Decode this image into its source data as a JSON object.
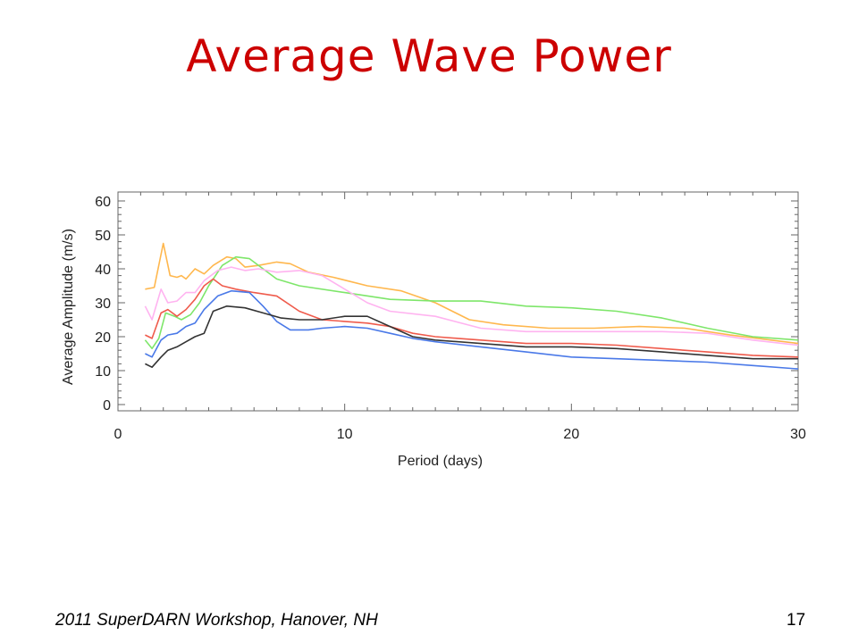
{
  "slide": {
    "title": "Average Wave Power",
    "footer": "2011 SuperDARN Workshop, Hanover, NH",
    "page_number": "17"
  },
  "chart_data": {
    "type": "line",
    "title": "",
    "xlabel": "Period (days)",
    "ylabel": "Average Amplitude (m/s)",
    "xlim": [
      0,
      30
    ],
    "ylim": [
      0,
      60
    ],
    "x_ticks": [
      0,
      10,
      20,
      30
    ],
    "y_ticks": [
      0,
      10,
      20,
      30,
      40,
      50,
      60
    ],
    "grid": false,
    "series": [
      {
        "color": "#ffb74d",
        "points": [
          [
            1.2,
            34
          ],
          [
            1.6,
            34.5
          ],
          [
            2.0,
            47.5
          ],
          [
            2.3,
            38
          ],
          [
            2.6,
            37.5
          ],
          [
            2.8,
            38
          ],
          [
            3.0,
            37
          ],
          [
            3.4,
            40
          ],
          [
            3.8,
            38.5
          ],
          [
            4.2,
            41
          ],
          [
            4.8,
            43.5
          ],
          [
            5.2,
            43
          ],
          [
            5.6,
            40.5
          ],
          [
            6.2,
            41
          ],
          [
            7.0,
            42
          ],
          [
            7.6,
            41.5
          ],
          [
            8.4,
            39
          ],
          [
            9.5,
            37.5
          ],
          [
            11,
            35
          ],
          [
            12.5,
            33.5
          ],
          [
            14,
            30
          ],
          [
            15.5,
            25
          ],
          [
            17,
            23.5
          ],
          [
            19,
            22.5
          ],
          [
            21,
            22.5
          ],
          [
            23,
            23
          ],
          [
            25,
            22.5
          ],
          [
            27,
            20.5
          ],
          [
            30,
            18
          ]
        ]
      },
      {
        "color": "#7ee66a",
        "points": [
          [
            1.2,
            19
          ],
          [
            1.5,
            16.5
          ],
          [
            1.8,
            19.5
          ],
          [
            2.1,
            27
          ],
          [
            2.5,
            26
          ],
          [
            2.8,
            25
          ],
          [
            3.2,
            26.5
          ],
          [
            3.6,
            30
          ],
          [
            4.0,
            35
          ],
          [
            4.6,
            41
          ],
          [
            5.2,
            43.5
          ],
          [
            5.8,
            43
          ],
          [
            6.4,
            40
          ],
          [
            7.0,
            37
          ],
          [
            8.0,
            35
          ],
          [
            10,
            33
          ],
          [
            12,
            31
          ],
          [
            14,
            30.5
          ],
          [
            16,
            30.5
          ],
          [
            18,
            29
          ],
          [
            20,
            28.5
          ],
          [
            22,
            27.5
          ],
          [
            24,
            25.5
          ],
          [
            26,
            22.5
          ],
          [
            28,
            20
          ],
          [
            30,
            19
          ]
        ]
      },
      {
        "color": "#ffb3f0",
        "points": [
          [
            1.2,
            29
          ],
          [
            1.5,
            25
          ],
          [
            1.9,
            34
          ],
          [
            2.2,
            30
          ],
          [
            2.6,
            30.5
          ],
          [
            3.0,
            33
          ],
          [
            3.4,
            33
          ],
          [
            3.8,
            36.5
          ],
          [
            4.4,
            39.5
          ],
          [
            5.0,
            40.5
          ],
          [
            5.6,
            39.5
          ],
          [
            6.2,
            40
          ],
          [
            7.0,
            39
          ],
          [
            8.0,
            39.5
          ],
          [
            9.0,
            38
          ],
          [
            10,
            34
          ],
          [
            11,
            30
          ],
          [
            12,
            27.5
          ],
          [
            14,
            26
          ],
          [
            16,
            22.5
          ],
          [
            18,
            21.5
          ],
          [
            20,
            21.5
          ],
          [
            22,
            21.5
          ],
          [
            24,
            21.5
          ],
          [
            26,
            21
          ],
          [
            28,
            19
          ],
          [
            30,
            17.5
          ]
        ]
      },
      {
        "color": "#ef5b4c",
        "points": [
          [
            1.2,
            20.5
          ],
          [
            1.5,
            19.5
          ],
          [
            1.9,
            27
          ],
          [
            2.2,
            28
          ],
          [
            2.6,
            26
          ],
          [
            3.0,
            28
          ],
          [
            3.4,
            31
          ],
          [
            3.8,
            35
          ],
          [
            4.2,
            37
          ],
          [
            4.6,
            35
          ],
          [
            5.2,
            34
          ],
          [
            6.0,
            33
          ],
          [
            7.0,
            32
          ],
          [
            8.0,
            27.5
          ],
          [
            9.0,
            25
          ],
          [
            10,
            24.5
          ],
          [
            11,
            24
          ],
          [
            12,
            23
          ],
          [
            13,
            21
          ],
          [
            14,
            20
          ],
          [
            15,
            19.5
          ],
          [
            16,
            19
          ],
          [
            18,
            18
          ],
          [
            20,
            18
          ],
          [
            22,
            17.5
          ],
          [
            24,
            16.5
          ],
          [
            26,
            15.5
          ],
          [
            28,
            14.5
          ],
          [
            30,
            14
          ]
        ]
      },
      {
        "color": "#4a79e8",
        "points": [
          [
            1.2,
            15
          ],
          [
            1.5,
            14
          ],
          [
            1.9,
            19
          ],
          [
            2.2,
            20.5
          ],
          [
            2.6,
            21
          ],
          [
            3.0,
            23
          ],
          [
            3.4,
            24
          ],
          [
            3.8,
            28
          ],
          [
            4.4,
            32
          ],
          [
            5.0,
            33.5
          ],
          [
            5.8,
            33
          ],
          [
            6.4,
            29
          ],
          [
            7.0,
            24.5
          ],
          [
            7.6,
            22
          ],
          [
            8.4,
            22
          ],
          [
            9.0,
            22.5
          ],
          [
            10,
            23
          ],
          [
            11,
            22.5
          ],
          [
            12,
            21
          ],
          [
            13,
            19.5
          ],
          [
            14,
            18.5
          ],
          [
            16,
            17
          ],
          [
            18,
            15.5
          ],
          [
            20,
            14
          ],
          [
            22,
            13.5
          ],
          [
            24,
            13
          ],
          [
            26,
            12.5
          ],
          [
            28,
            11.5
          ],
          [
            30,
            10.5
          ]
        ]
      },
      {
        "color": "#333333",
        "points": [
          [
            1.2,
            12
          ],
          [
            1.5,
            11
          ],
          [
            1.9,
            14
          ],
          [
            2.2,
            16
          ],
          [
            2.6,
            17
          ],
          [
            3.0,
            18.5
          ],
          [
            3.4,
            20
          ],
          [
            3.8,
            21
          ],
          [
            4.2,
            27.5
          ],
          [
            4.8,
            29
          ],
          [
            5.6,
            28.5
          ],
          [
            6.4,
            27
          ],
          [
            7.2,
            25.5
          ],
          [
            8.0,
            25
          ],
          [
            9.0,
            25
          ],
          [
            10,
            26
          ],
          [
            11,
            26
          ],
          [
            12,
            23
          ],
          [
            13,
            20
          ],
          [
            14,
            19
          ],
          [
            16,
            18
          ],
          [
            18,
            17
          ],
          [
            20,
            17
          ],
          [
            22,
            16.5
          ],
          [
            24,
            15.5
          ],
          [
            26,
            14.5
          ],
          [
            28,
            13.5
          ],
          [
            30,
            13.5
          ]
        ]
      }
    ]
  }
}
